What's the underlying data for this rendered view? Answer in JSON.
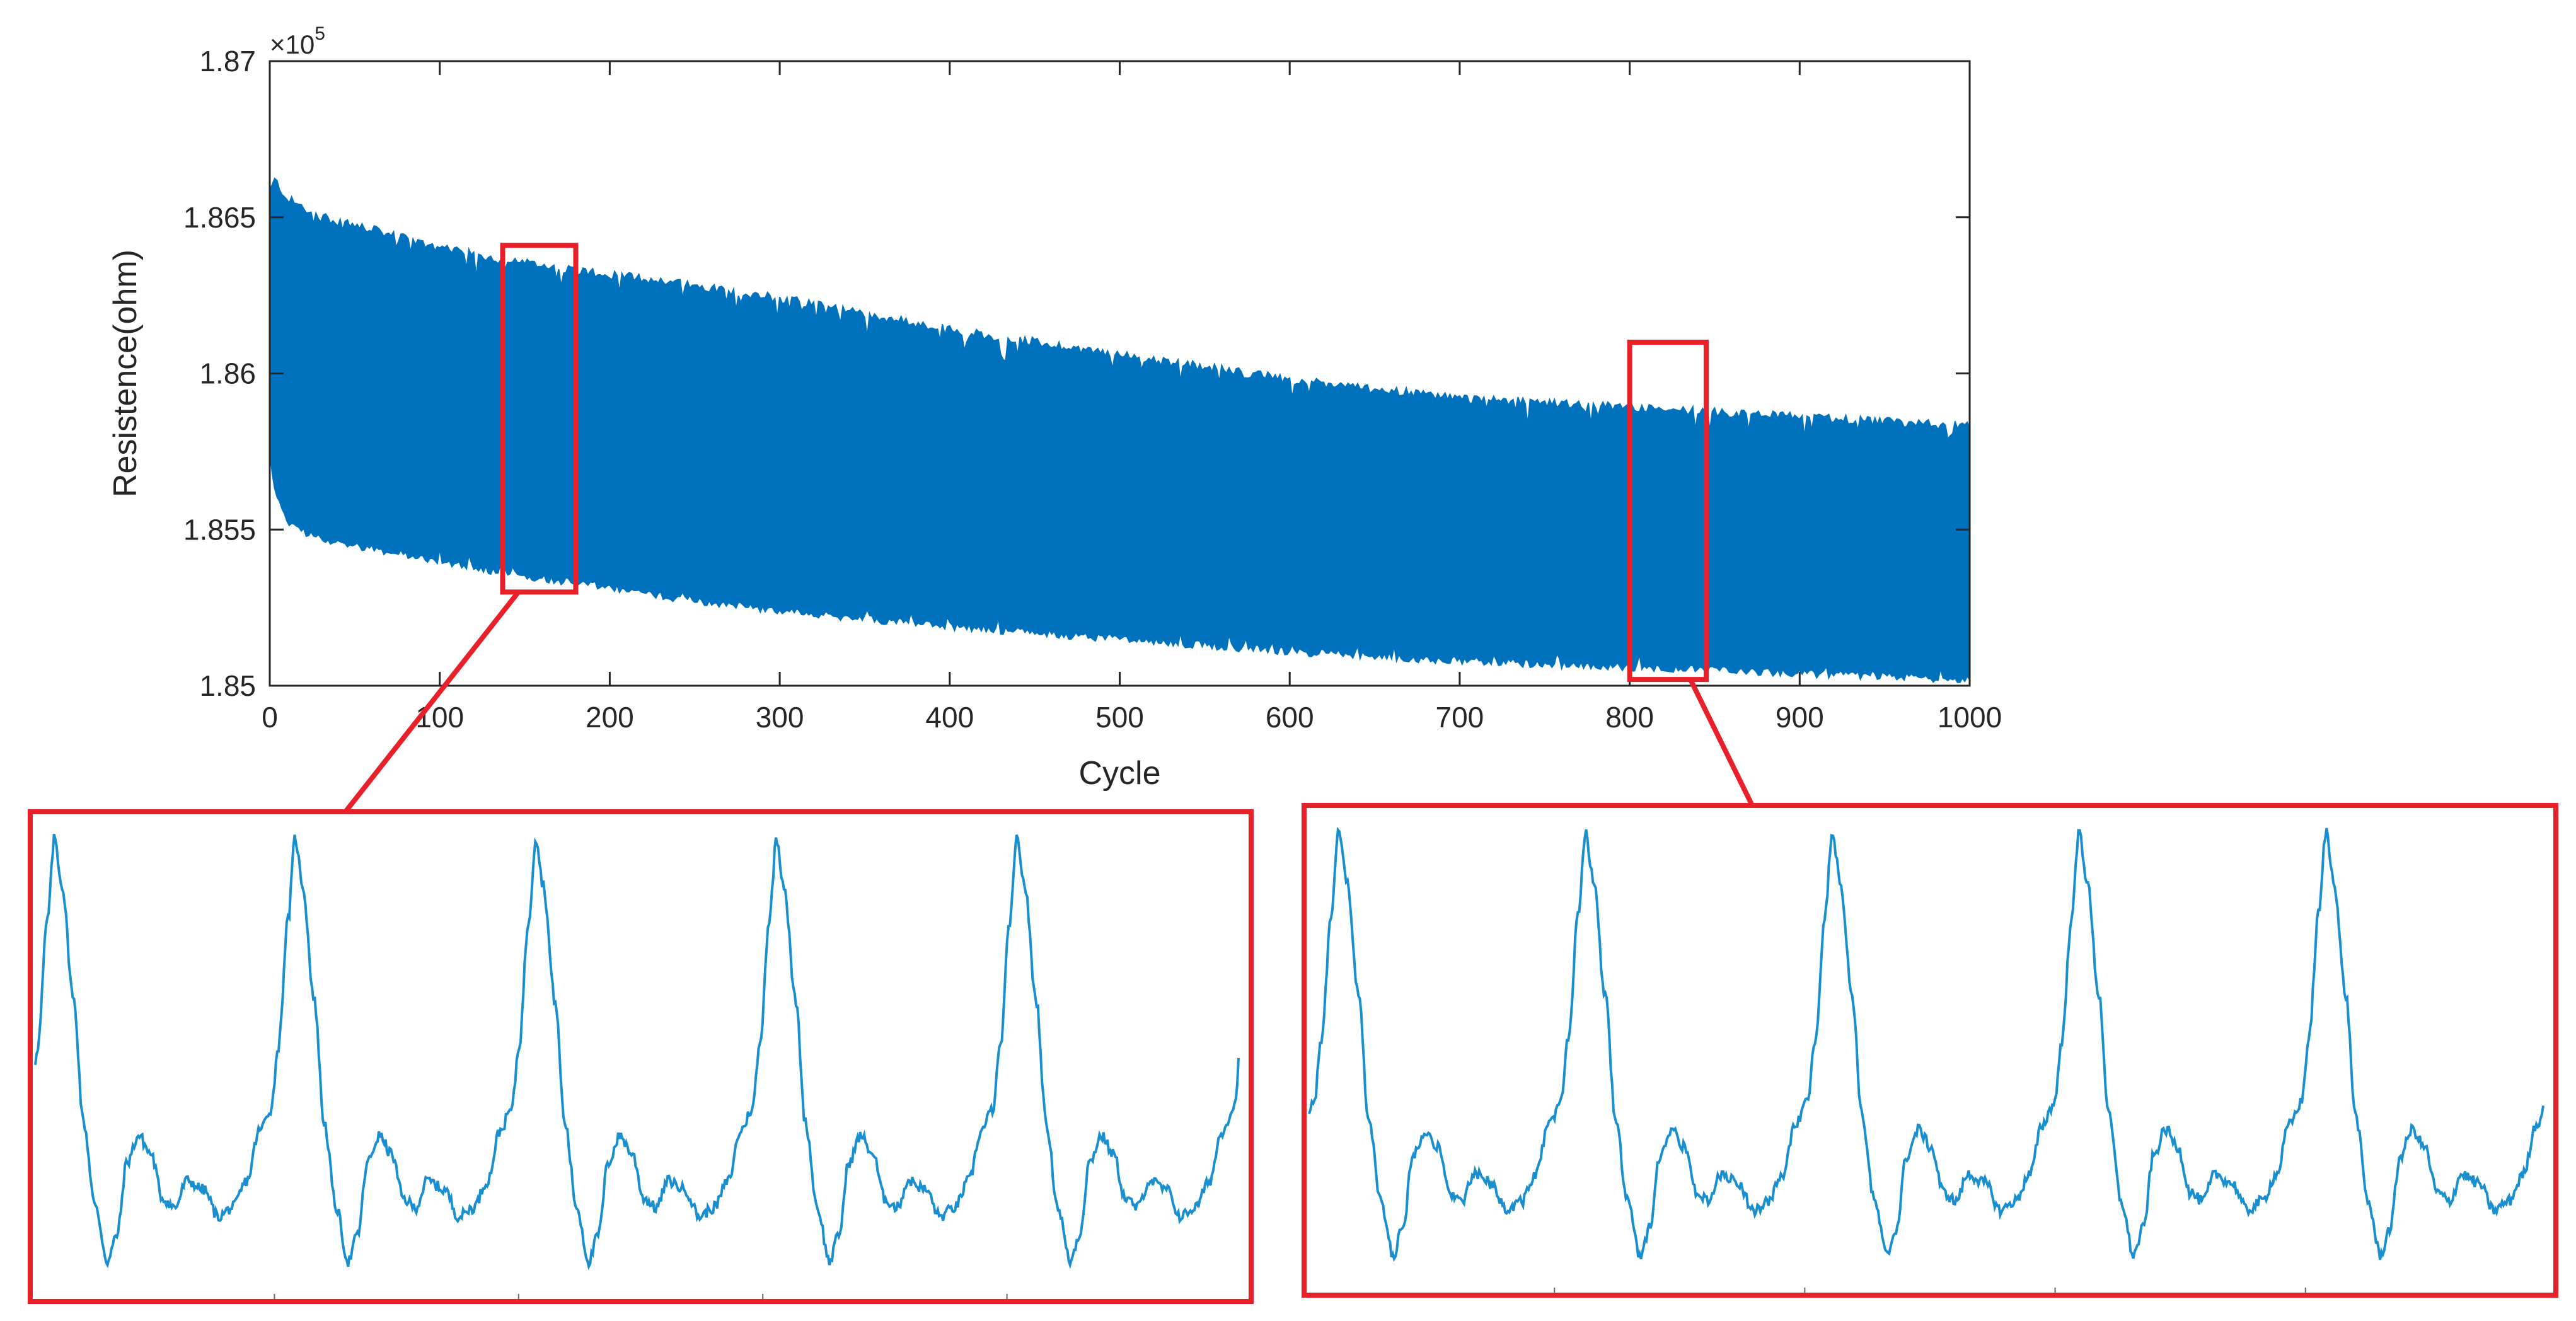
{
  "chart_data": {
    "type": "line",
    "xlabel": "Cycle",
    "ylabel": "Resistence(ohm)",
    "exponent_label": "×10",
    "exponent_power": "5",
    "xlim": [
      0,
      1000
    ],
    "ylim": [
      185000,
      187000
    ],
    "x_ticks": [
      "0",
      "100",
      "200",
      "300",
      "400",
      "500",
      "600",
      "700",
      "800",
      "900",
      "1000"
    ],
    "y_ticks": [
      "1.85",
      "1.855",
      "1.86",
      "1.865",
      "1.87"
    ],
    "grid": false,
    "series": [
      {
        "color": "#0072BD",
        "envelope_x": [
          0,
          3,
          10,
          30,
          60,
          100,
          140,
          180,
          240,
          300,
          400,
          500,
          600,
          700,
          800,
          900,
          1000
        ],
        "upper": [
          186580,
          186620,
          186560,
          186500,
          186460,
          186400,
          186360,
          186330,
          186290,
          186240,
          186140,
          186060,
          185980,
          185920,
          185890,
          185860,
          185830
        ],
        "lower": [
          185750,
          185620,
          185520,
          185470,
          185440,
          185400,
          185360,
          185330,
          185280,
          185240,
          185190,
          185150,
          185110,
          185080,
          185060,
          185040,
          185020
        ]
      }
    ],
    "highlight_boxes": [
      {
        "x_range": [
          137,
          180
        ],
        "y_range": [
          185300,
          186410
        ]
      },
      {
        "x_range": [
          800,
          845
        ],
        "y_range": [
          185020,
          186100
        ]
      }
    ],
    "zoom_insets": [
      {
        "source": 0,
        "beats": 5
      },
      {
        "source": 1,
        "beats": 5
      }
    ],
    "highlight_color": "#E8202A"
  }
}
